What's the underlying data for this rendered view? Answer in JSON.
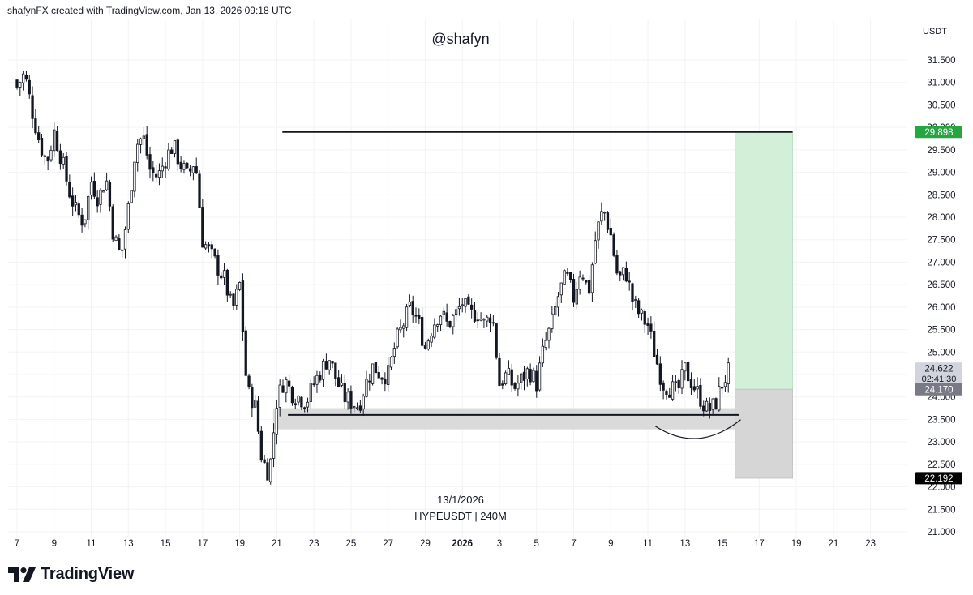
{
  "header": {
    "text": "shafynFX created with TradingView.com, Jan 13, 2026 09:18 UTC"
  },
  "watermark": "@shafyn",
  "footer": {
    "date": "13/1/2026",
    "symbol": "HYPEUSDT | 240M",
    "brand": "TradingView"
  },
  "chart_data": {
    "type": "candlestick",
    "symbol": "HYPEUSDT",
    "interval": "240M",
    "currency_label": "USDT",
    "y_ticks": [
      "21.000",
      "21.500",
      "22.000",
      "22.500",
      "23.000",
      "23.500",
      "24.000",
      "24.500",
      "25.000",
      "25.500",
      "26.000",
      "26.500",
      "27.000",
      "27.500",
      "28.000",
      "28.500",
      "29.000",
      "29.500",
      "30.000",
      "30.500",
      "31.000",
      "31.500"
    ],
    "ylim": [
      20.95,
      31.9
    ],
    "x_tick_labels": [
      "7",
      "9",
      "11",
      "13",
      "15",
      "17",
      "19",
      "21",
      "23",
      "25",
      "27",
      "29",
      "2026",
      "3",
      "5",
      "7",
      "9",
      "11",
      "13",
      "15",
      "17",
      "19",
      "21",
      "23"
    ],
    "x_tick_bold": [
      "2026"
    ],
    "x_range_days": [
      -0.2,
      48.0
    ],
    "date_axis_note": "Dec 2025 to Jan 2026; day 0 = Dec 7",
    "close_path": [
      [
        0.0,
        30.9
      ],
      [
        0.4,
        31.2
      ],
      [
        0.8,
        30.4
      ],
      [
        1.2,
        29.7
      ],
      [
        1.6,
        29.2
      ],
      [
        2.0,
        29.9
      ],
      [
        2.4,
        29.3
      ],
      [
        2.8,
        28.6
      ],
      [
        3.2,
        28.1
      ],
      [
        3.6,
        27.9
      ],
      [
        4.0,
        28.8
      ],
      [
        4.4,
        28.4
      ],
      [
        4.8,
        28.9
      ],
      [
        5.2,
        27.6
      ],
      [
        5.6,
        27.1
      ],
      [
        6.0,
        28.2
      ],
      [
        6.4,
        29.6
      ],
      [
        6.8,
        29.8
      ],
      [
        7.2,
        29.0
      ],
      [
        7.6,
        28.9
      ],
      [
        8.0,
        29.3
      ],
      [
        8.4,
        29.6
      ],
      [
        8.8,
        29.2
      ],
      [
        9.2,
        28.9
      ],
      [
        9.6,
        29.3
      ],
      [
        10.0,
        27.5
      ],
      [
        10.4,
        27.2
      ],
      [
        10.8,
        26.9
      ],
      [
        11.2,
        26.6
      ],
      [
        11.6,
        25.9
      ],
      [
        12.0,
        26.5
      ],
      [
        12.4,
        24.1
      ],
      [
        12.8,
        23.9
      ],
      [
        13.2,
        22.6
      ],
      [
        13.6,
        22.3
      ],
      [
        14.0,
        23.9
      ],
      [
        14.4,
        24.4
      ],
      [
        14.8,
        24.1
      ],
      [
        15.2,
        24.0
      ],
      [
        15.6,
        23.9
      ],
      [
        16.0,
        24.3
      ],
      [
        16.4,
        24.6
      ],
      [
        16.8,
        24.9
      ],
      [
        17.2,
        24.4
      ],
      [
        17.6,
        24.0
      ],
      [
        18.0,
        23.9
      ],
      [
        18.4,
        23.8
      ],
      [
        18.8,
        24.3
      ],
      [
        19.2,
        24.7
      ],
      [
        19.6,
        24.5
      ],
      [
        20.0,
        24.5
      ],
      [
        20.4,
        25.2
      ],
      [
        20.8,
        25.6
      ],
      [
        21.2,
        26.0
      ],
      [
        21.6,
        25.7
      ],
      [
        22.0,
        25.1
      ],
      [
        22.4,
        25.6
      ],
      [
        22.8,
        25.9
      ],
      [
        23.2,
        25.6
      ],
      [
        23.6,
        25.8
      ],
      [
        24.0,
        26.1
      ],
      [
        24.4,
        25.8
      ],
      [
        24.8,
        25.9
      ],
      [
        25.2,
        25.6
      ],
      [
        25.6,
        25.9
      ],
      [
        26.0,
        24.3
      ],
      [
        26.4,
        24.5
      ],
      [
        26.8,
        24.2
      ],
      [
        27.2,
        24.4
      ],
      [
        27.6,
        24.6
      ],
      [
        28.0,
        24.3
      ],
      [
        28.4,
        25.1
      ],
      [
        28.8,
        25.6
      ],
      [
        29.2,
        26.3
      ],
      [
        29.6,
        26.7
      ],
      [
        30.0,
        26.2
      ],
      [
        30.4,
        26.9
      ],
      [
        30.8,
        26.3
      ],
      [
        31.2,
        27.6
      ],
      [
        31.6,
        28.2
      ],
      [
        32.0,
        27.6
      ],
      [
        32.4,
        26.6
      ],
      [
        32.8,
        26.8
      ],
      [
        33.2,
        26.1
      ],
      [
        33.6,
        25.8
      ],
      [
        34.0,
        25.6
      ],
      [
        34.4,
        24.9
      ],
      [
        34.8,
        24.3
      ],
      [
        35.2,
        24.2
      ],
      [
        35.6,
        24.1
      ],
      [
        36.0,
        24.6
      ],
      [
        36.4,
        24.3
      ],
      [
        36.8,
        24.0
      ],
      [
        37.2,
        23.7
      ],
      [
        37.6,
        23.8
      ],
      [
        38.0,
        24.3
      ],
      [
        38.4,
        24.6
      ]
    ],
    "range_support_line": 23.6,
    "resistance_line": 29.898,
    "support_zone": [
      23.28,
      23.75
    ],
    "position": {
      "entry": 24.17,
      "target": 29.898,
      "stop": 22.192,
      "start_day": 38.7,
      "end_day": 41.8
    },
    "price_labels": [
      {
        "value": "29.898",
        "price": 29.898,
        "color": "#26a641"
      },
      {
        "value": "24.622",
        "sub": "02:41:30",
        "price": 24.622,
        "color": "#d1d4dc"
      },
      {
        "value": "24.170",
        "price": 24.17,
        "color": "#787b86"
      },
      {
        "value": "22.192",
        "price": 22.192,
        "color": "#000000"
      }
    ]
  }
}
